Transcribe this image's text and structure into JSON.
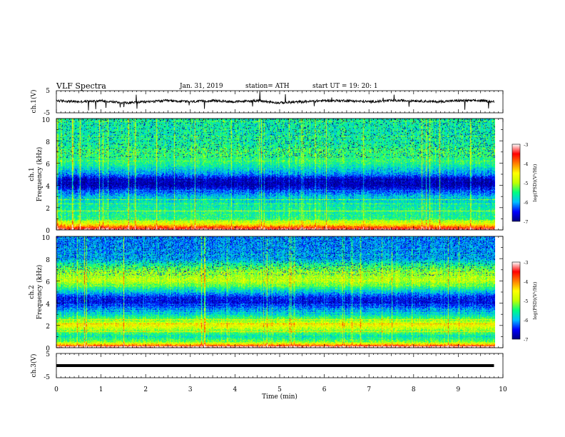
{
  "header": {
    "title": "VLF  Spectra",
    "date": "Jan. 31, 2019",
    "station": "station= ATH",
    "start_ut": "start  UT  =    19: 20: 1"
  },
  "x_axis": {
    "label": "Time  (min)",
    "ticks": [
      "0",
      "1",
      "2",
      "3",
      "4",
      "5",
      "6",
      "7",
      "8",
      "9",
      "10"
    ]
  },
  "colorbar": {
    "label": "log(PSD)(V²/Hz)",
    "ticks": [
      "-3",
      "-4",
      "-5",
      "-6",
      "-7"
    ]
  },
  "panels": {
    "ch1_wave": {
      "label": "ch.1(V)",
      "ticks": [
        "5",
        "-5"
      ]
    },
    "ch1_spec": {
      "label": "ch.1",
      "sublabel": "Frequency  (kHz)",
      "ticks": [
        "10",
        "8",
        "6",
        "4",
        "2",
        "0"
      ]
    },
    "ch2_spec": {
      "label": "ch.2",
      "sublabel": "Frequency  (kHz)",
      "ticks": [
        "10",
        "8",
        "6",
        "4",
        "2",
        "0"
      ]
    },
    "ch3_wave": {
      "label": "ch.3(V)",
      "ticks": [
        "5",
        "-5"
      ]
    }
  },
  "colors": {
    "map": [
      "#000080",
      "#0000ff",
      "#00c0ff",
      "#00ff80",
      "#c0ff00",
      "#ffff00",
      "#ff8000",
      "#ff0000",
      "#ffffff"
    ]
  },
  "chart_data": [
    {
      "type": "line",
      "panel": "ch1_wave",
      "xlabel": "Time  (min)",
      "ylabel": "ch.1(V)",
      "xlim": [
        0,
        10
      ],
      "ylim": [
        -5,
        5
      ],
      "x": [
        0,
        0.5,
        1,
        1.5,
        2,
        2.5,
        3,
        3.5,
        4,
        4.5,
        5,
        5.5,
        6,
        6.5,
        7,
        7.5,
        8,
        8.5,
        9,
        9.5,
        9.8
      ],
      "values": [
        0.5,
        0,
        0.5,
        -0.5,
        0,
        0.5,
        0,
        0.5,
        0,
        0.5,
        -0.5,
        0,
        0.5,
        0.5,
        0,
        0.5,
        0.5,
        0,
        0.5,
        0.5,
        0
      ]
    },
    {
      "type": "heatmap",
      "panel": "ch1_spec",
      "xlabel": "Time  (min)",
      "ylabel": "Frequency  (kHz)",
      "xlim": [
        0,
        10
      ],
      "ylim": [
        0,
        10
      ],
      "data_end_min": 9.8,
      "colorbar_label": "log(PSD)(V²/Hz)",
      "colorbar_range": [
        -7,
        -3
      ],
      "profile_khz": [
        0,
        0.5,
        1,
        2,
        3,
        4,
        4.5,
        5,
        6,
        7,
        8,
        9,
        10
      ],
      "profile_log_psd": [
        -3.2,
        -4.6,
        -5.5,
        -5.6,
        -5.9,
        -6.8,
        -6.8,
        -6.1,
        -5.5,
        -5.4,
        -5.6,
        -5.6,
        -5.6
      ]
    },
    {
      "type": "heatmap",
      "panel": "ch2_spec",
      "xlabel": "Time  (min)",
      "ylabel": "Frequency  (kHz)",
      "xlim": [
        0,
        10
      ],
      "ylim": [
        0,
        10
      ],
      "data_end_min": 9.8,
      "colorbar_label": "log(PSD)(V²/Hz)",
      "colorbar_range": [
        -7,
        -3
      ],
      "profile_khz": [
        0,
        0.5,
        1,
        2,
        3,
        4,
        4.5,
        5,
        6,
        7,
        8,
        9,
        10
      ],
      "profile_log_psd": [
        -3.2,
        -5.2,
        -5.7,
        -4.6,
        -5.8,
        -6.6,
        -6.5,
        -5.9,
        -4.9,
        -5.2,
        -6.0,
        -6.1,
        -6.1
      ]
    },
    {
      "type": "line",
      "panel": "ch3_wave",
      "xlabel": "Time  (min)",
      "ylabel": "ch.3(V)",
      "xlim": [
        0,
        10
      ],
      "ylim": [
        -5,
        5
      ],
      "x": [
        0,
        9.8
      ],
      "values": [
        0,
        0
      ]
    }
  ]
}
